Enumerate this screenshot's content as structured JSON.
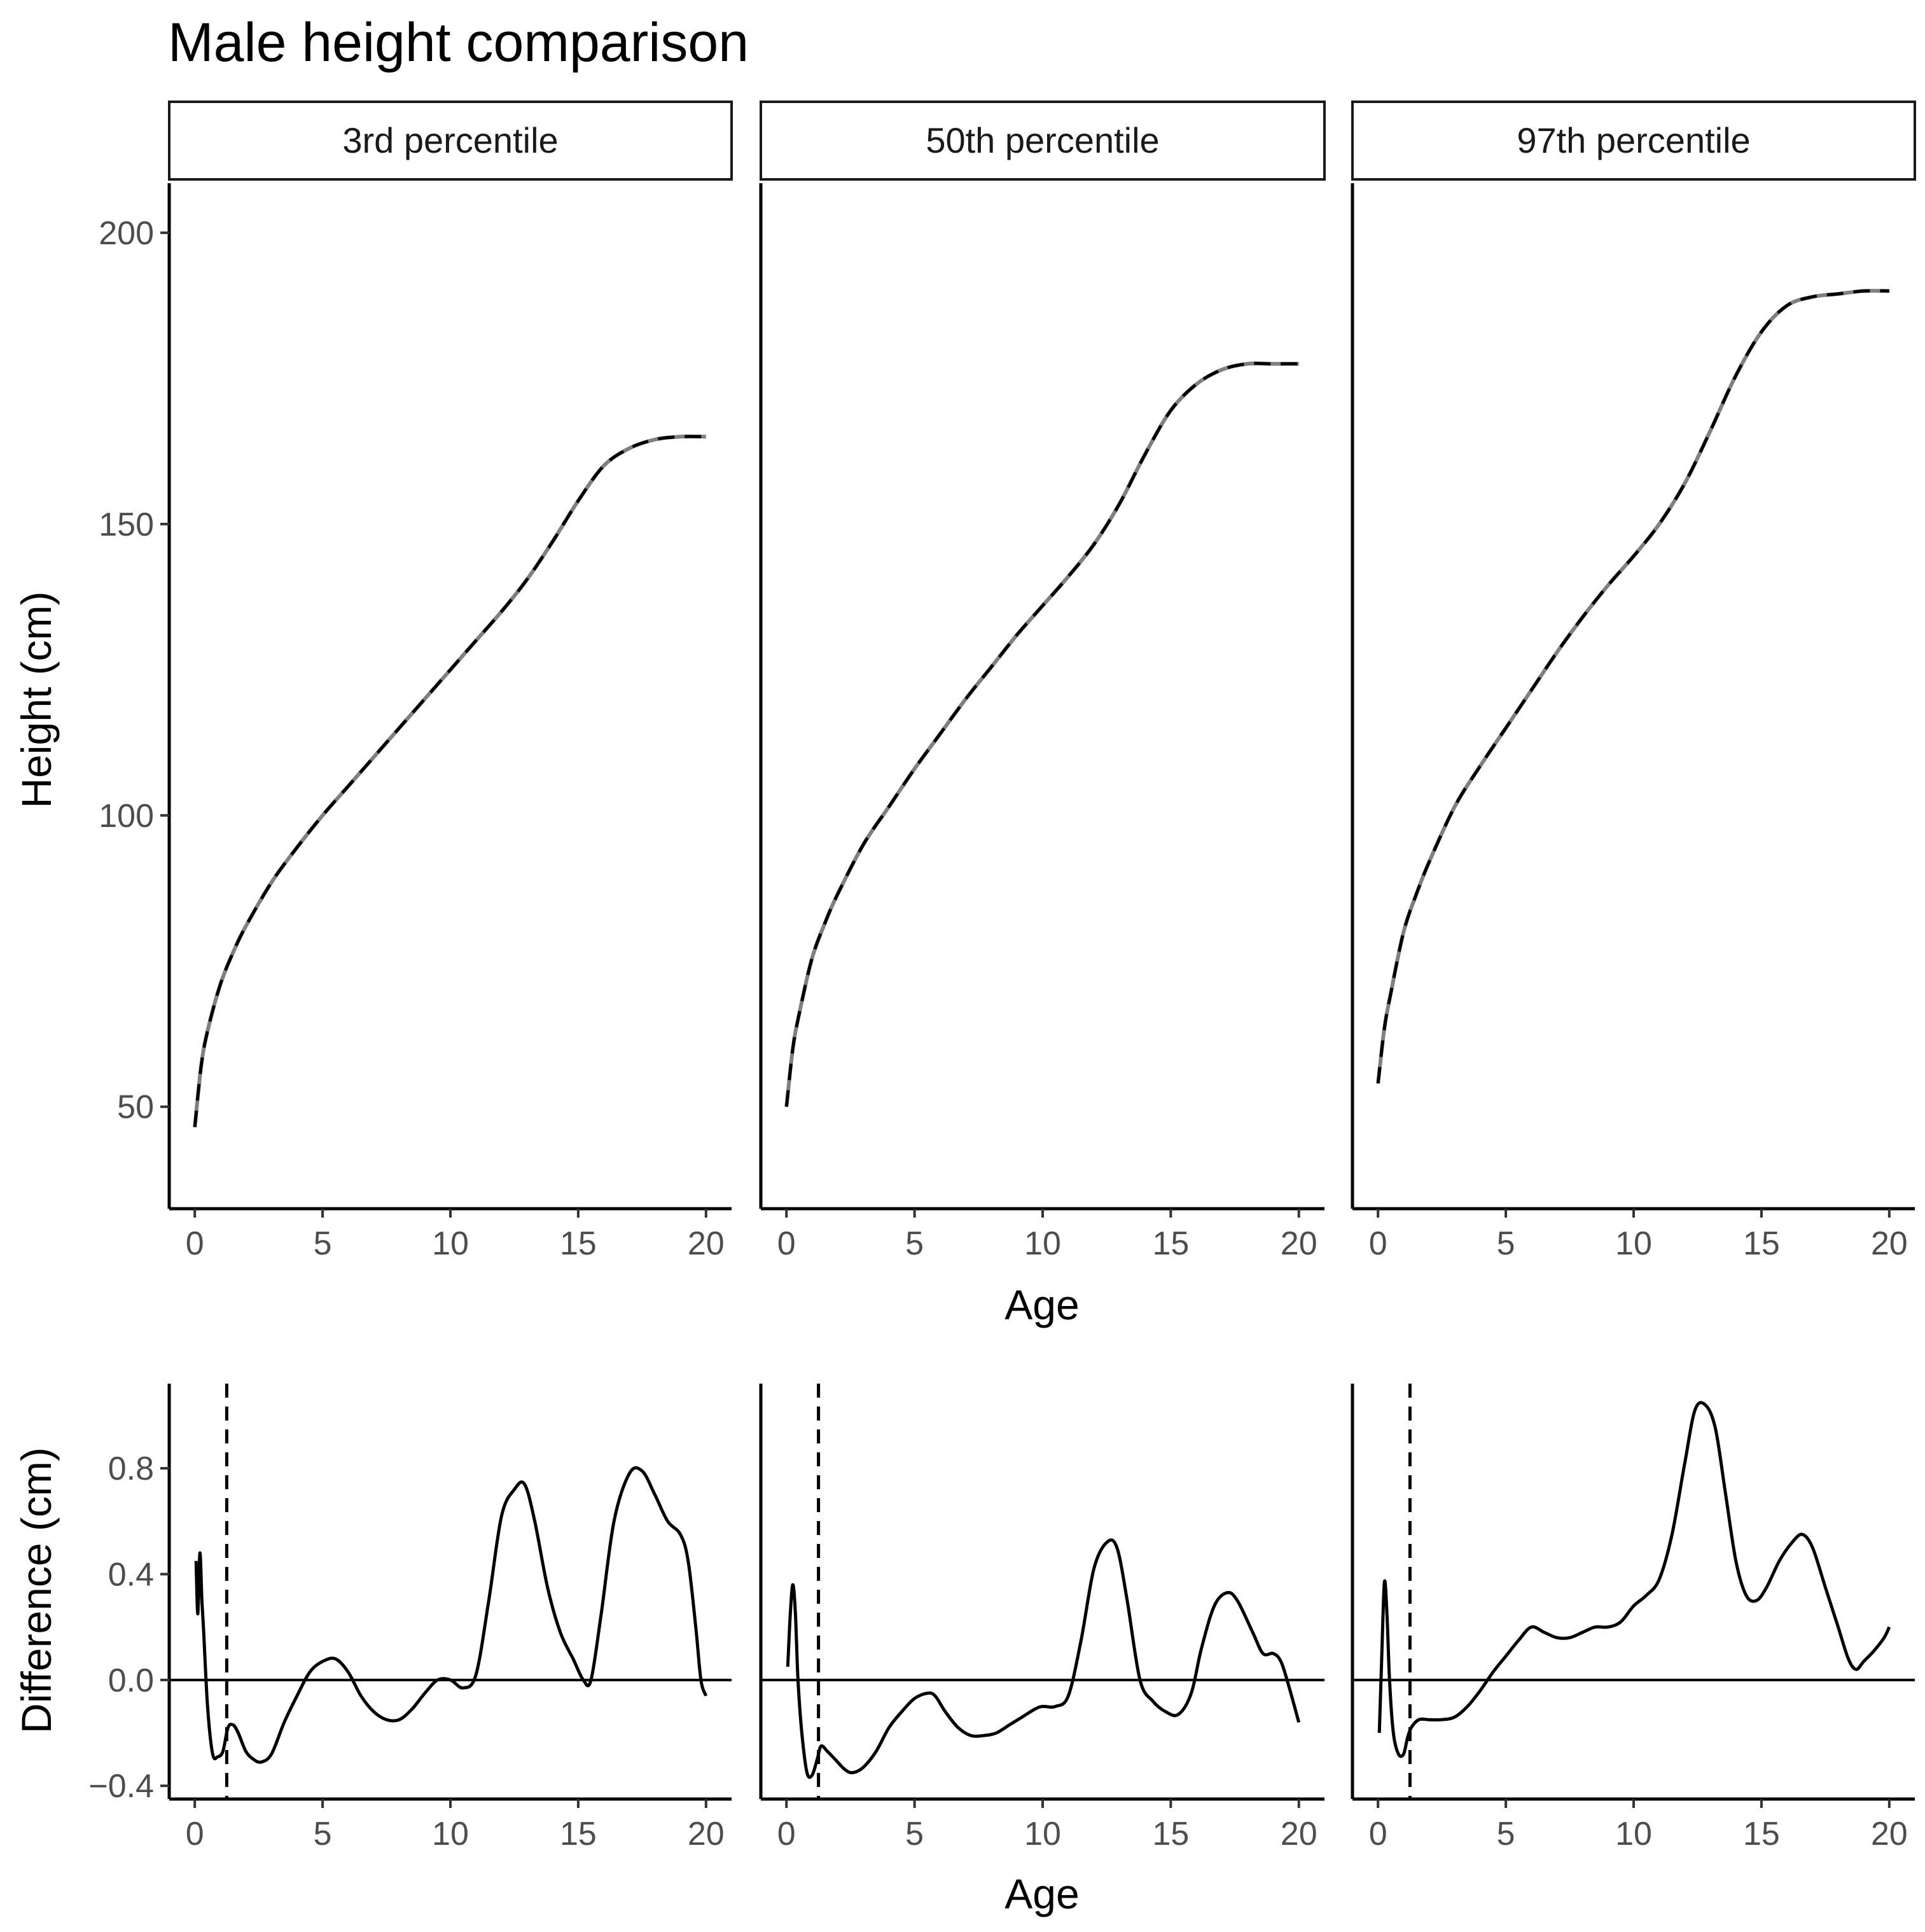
{
  "chart_data": {
    "title": "Male height comparison",
    "facets": [
      "3rd percentile",
      "50th percentile",
      "97th percentile"
    ],
    "top": {
      "type": "line",
      "xlabel": "Age",
      "ylabel": "Height (cm)",
      "xlim": [
        -1,
        21
      ],
      "ylim": [
        32.5,
        208.5
      ],
      "xticks": [
        0,
        5,
        10,
        15,
        20
      ],
      "yticks": [
        50,
        100,
        150,
        200
      ],
      "series_styles": [
        {
          "name": "reference",
          "color": "#808080",
          "dash": "solid"
        },
        {
          "name": "fitted",
          "color": "#000000",
          "dash": "dashed"
        }
      ],
      "series": [
        {
          "facet": "3rd percentile",
          "x": [
            0,
            0.25,
            0.5,
            1,
            1.5,
            2,
            3,
            4,
            5,
            6,
            7,
            8,
            9,
            10,
            11,
            12,
            13,
            14,
            15,
            16,
            17,
            18,
            19,
            20
          ],
          "y": [
            46.5,
            57,
            63,
            71,
            76.5,
            81,
            88.5,
            94.5,
            100,
            105,
            110,
            115,
            120,
            125,
            130,
            135,
            140.5,
            147,
            154,
            160,
            163,
            164.5,
            165,
            165
          ]
        },
        {
          "facet": "50th percentile",
          "x": [
            0,
            0.25,
            0.5,
            1,
            1.5,
            2,
            3,
            4,
            5,
            6,
            7,
            8,
            9,
            10,
            11,
            12,
            13,
            14,
            15,
            16,
            17,
            18,
            19,
            20
          ],
          "y": [
            50,
            60,
            66,
            75.5,
            81.5,
            86.5,
            95,
            101.5,
            108,
            114,
            120,
            125.5,
            131,
            136,
            141,
            146.5,
            153.5,
            162,
            169.5,
            174,
            176.5,
            177.5,
            177.5,
            177.5
          ]
        },
        {
          "facet": "97th percentile",
          "x": [
            0,
            0.25,
            0.5,
            1,
            1.5,
            2,
            3,
            4,
            5,
            6,
            7,
            8,
            9,
            10,
            11,
            12,
            13,
            14,
            15,
            16,
            17,
            18,
            19,
            20
          ],
          "y": [
            54,
            63.5,
            69.5,
            80,
            86.5,
            92,
            101.5,
            108.5,
            115,
            121.5,
            128,
            134,
            139.5,
            144.5,
            150,
            157,
            166,
            175.5,
            183,
            187.5,
            189,
            189.5,
            190,
            190
          ]
        }
      ]
    },
    "bottom": {
      "type": "line",
      "xlabel": "Age",
      "ylabel": "Difference (cm)",
      "xlim": [
        -1,
        21
      ],
      "ylim": [
        -0.45,
        1.12
      ],
      "xticks": [
        0,
        5,
        10,
        15,
        20
      ],
      "yticks": [
        -0.4,
        0.0,
        0.4,
        0.8
      ],
      "ytick_labels": [
        "−0.4",
        "0.0",
        "0.4",
        "0.8"
      ],
      "reference_hline": 0,
      "reference_vline": 1.25,
      "series": [
        {
          "facet": "3rd percentile",
          "x": [
            0.05,
            0.12,
            0.2,
            0.28,
            0.35,
            0.5,
            0.7,
            0.9,
            1.1,
            1.3,
            1.5,
            1.7,
            2,
            2.3,
            2.6,
            3,
            3.5,
            4,
            4.5,
            5,
            5.5,
            6,
            6.5,
            7,
            7.5,
            8,
            8.5,
            9,
            9.5,
            10,
            10.5,
            11,
            11.5,
            12,
            12.5,
            12.9,
            13.3,
            13.8,
            14.3,
            14.8,
            15.2,
            15.5,
            15.9,
            16.4,
            17,
            17.5,
            18,
            18.5,
            19,
            19.3,
            19.6,
            19.8,
            20
          ],
          "y": [
            0.45,
            0.25,
            0.48,
            0.3,
            0.18,
            -0.1,
            -0.28,
            -0.29,
            -0.27,
            -0.18,
            -0.17,
            -0.2,
            -0.27,
            -0.3,
            -0.31,
            -0.28,
            -0.16,
            -0.06,
            0.03,
            0.07,
            0.08,
            0.03,
            -0.06,
            -0.12,
            -0.15,
            -0.15,
            -0.11,
            -0.05,
            0.0,
            0.0,
            -0.03,
            0.02,
            0.3,
            0.62,
            0.72,
            0.74,
            0.6,
            0.35,
            0.18,
            0.08,
            0.0,
            0.0,
            0.25,
            0.6,
            0.78,
            0.79,
            0.7,
            0.6,
            0.55,
            0.45,
            0.2,
            0.0,
            -0.06
          ]
        },
        {
          "facet": "50th percentile",
          "x": [
            0.05,
            0.15,
            0.25,
            0.35,
            0.45,
            0.6,
            0.8,
            1.0,
            1.2,
            1.35,
            1.6,
            1.9,
            2.3,
            2.6,
            3,
            3.5,
            4,
            4.5,
            5,
            5.5,
            5.8,
            6.2,
            6.7,
            7.2,
            7.7,
            8.2,
            8.7,
            9.2,
            9.7,
            10,
            10.5,
            11,
            11.5,
            12,
            12.5,
            12.9,
            13.3,
            13.8,
            14.3,
            14.8,
            15.3,
            15.8,
            16.2,
            16.7,
            17.2,
            17.6,
            18.2,
            18.6,
            19,
            19.3,
            19.6,
            20
          ],
          "y": [
            0.05,
            0.25,
            0.36,
            0.25,
            0.0,
            -0.2,
            -0.35,
            -0.36,
            -0.3,
            -0.25,
            -0.27,
            -0.3,
            -0.34,
            -0.35,
            -0.33,
            -0.27,
            -0.18,
            -0.12,
            -0.07,
            -0.05,
            -0.06,
            -0.12,
            -0.18,
            -0.21,
            -0.21,
            -0.2,
            -0.17,
            -0.14,
            -0.11,
            -0.1,
            -0.1,
            -0.06,
            0.15,
            0.42,
            0.52,
            0.5,
            0.3,
            0.0,
            -0.08,
            -0.12,
            -0.13,
            -0.05,
            0.12,
            0.28,
            0.33,
            0.3,
            0.18,
            0.1,
            0.1,
            0.07,
            -0.02,
            -0.16
          ]
        },
        {
          "facet": "97th percentile",
          "x": [
            0.05,
            0.15,
            0.25,
            0.35,
            0.45,
            0.6,
            0.8,
            1.0,
            1.15,
            1.3,
            1.6,
            2,
            2.5,
            3,
            3.5,
            4,
            4.5,
            5,
            5.5,
            6,
            6.5,
            7,
            7.5,
            8,
            8.5,
            9,
            9.5,
            10,
            10.5,
            11,
            11.5,
            12,
            12.4,
            12.8,
            13.2,
            13.6,
            14,
            14.4,
            14.8,
            15.2,
            15.7,
            16.2,
            16.6,
            17,
            17.5,
            18,
            18.4,
            18.7,
            19,
            19.4,
            19.8,
            20
          ],
          "y": [
            -0.2,
            0.1,
            0.37,
            0.25,
            0.0,
            -0.2,
            -0.28,
            -0.28,
            -0.22,
            -0.18,
            -0.15,
            -0.15,
            -0.15,
            -0.14,
            -0.1,
            -0.04,
            0.03,
            0.09,
            0.15,
            0.2,
            0.18,
            0.16,
            0.16,
            0.18,
            0.2,
            0.2,
            0.22,
            0.28,
            0.32,
            0.38,
            0.55,
            0.82,
            1.02,
            1.04,
            0.95,
            0.7,
            0.45,
            0.32,
            0.3,
            0.35,
            0.45,
            0.52,
            0.55,
            0.5,
            0.35,
            0.2,
            0.08,
            0.04,
            0.07,
            0.11,
            0.16,
            0.2
          ]
        }
      ]
    }
  }
}
